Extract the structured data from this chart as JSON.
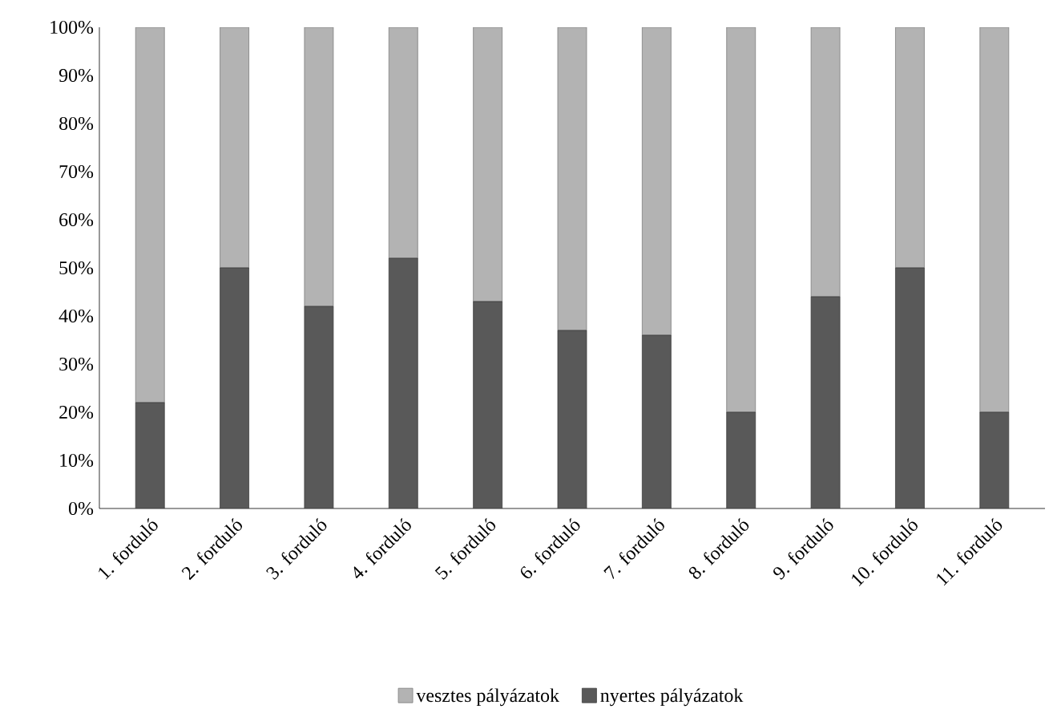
{
  "chart_data": {
    "type": "bar",
    "stacked": true,
    "categories": [
      "1. forduló",
      "2. forduló",
      "3. forduló",
      "4. forduló",
      "5. forduló",
      "6. forduló",
      "7. forduló",
      "8. forduló",
      "9. forduló",
      "10. forduló",
      "11. forduló"
    ],
    "series": [
      {
        "name": "nyertes pályázatok",
        "color": "#595959",
        "values": [
          22,
          50,
          42,
          52,
          43,
          37,
          36,
          20,
          44,
          50,
          20
        ]
      },
      {
        "name": "vesztes pályázatok",
        "color": "#b3b3b3",
        "values": [
          78,
          50,
          58,
          48,
          57,
          63,
          64,
          80,
          56,
          50,
          80
        ]
      }
    ],
    "ylim": [
      0,
      100
    ],
    "yticks": [
      {
        "value": 0,
        "label": "0%"
      },
      {
        "value": 10,
        "label": "10%"
      },
      {
        "value": 20,
        "label": "20%"
      },
      {
        "value": 30,
        "label": "30%"
      },
      {
        "value": 40,
        "label": "40%"
      },
      {
        "value": 50,
        "label": "50%"
      },
      {
        "value": 60,
        "label": "60%"
      },
      {
        "value": 70,
        "label": "70%"
      },
      {
        "value": 80,
        "label": "80%"
      },
      {
        "value": 90,
        "label": "90%"
      },
      {
        "value": 100,
        "label": "100%"
      }
    ],
    "grid": false,
    "legend": "bottom"
  }
}
